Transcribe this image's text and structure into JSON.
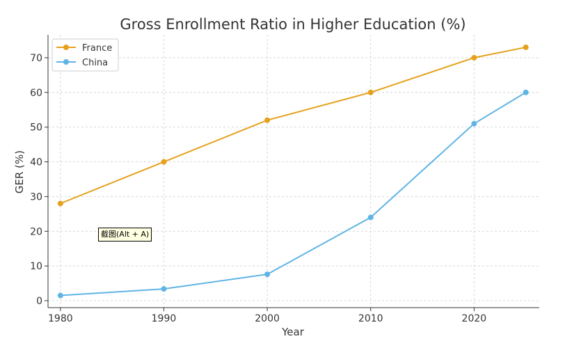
{
  "chart_data": {
    "type": "line",
    "title": "Gross Enrollment Ratio in Higher Education (%)",
    "xlabel": "Year",
    "ylabel": "GER (%)",
    "x": [
      1980,
      1990,
      2000,
      2010,
      2020,
      2025
    ],
    "xticks": [
      1980,
      1990,
      2000,
      2010,
      2020
    ],
    "yticks": [
      0,
      10,
      20,
      30,
      40,
      50,
      60,
      70
    ],
    "xlim": [
      1978.8,
      2026.3
    ],
    "ylim": [
      -2.0,
      76.6
    ],
    "grid": true,
    "legend_position": "top-left",
    "series": [
      {
        "name": "France",
        "color": "#e5a11c",
        "values": [
          28,
          40,
          52,
          60,
          70,
          73
        ]
      },
      {
        "name": "China",
        "color": "#5fb4e5",
        "values": [
          1.5,
          3.4,
          7.6,
          24,
          51,
          60
        ]
      }
    ]
  },
  "overlay": {
    "tooltip_text": "截图(Alt + A)"
  }
}
